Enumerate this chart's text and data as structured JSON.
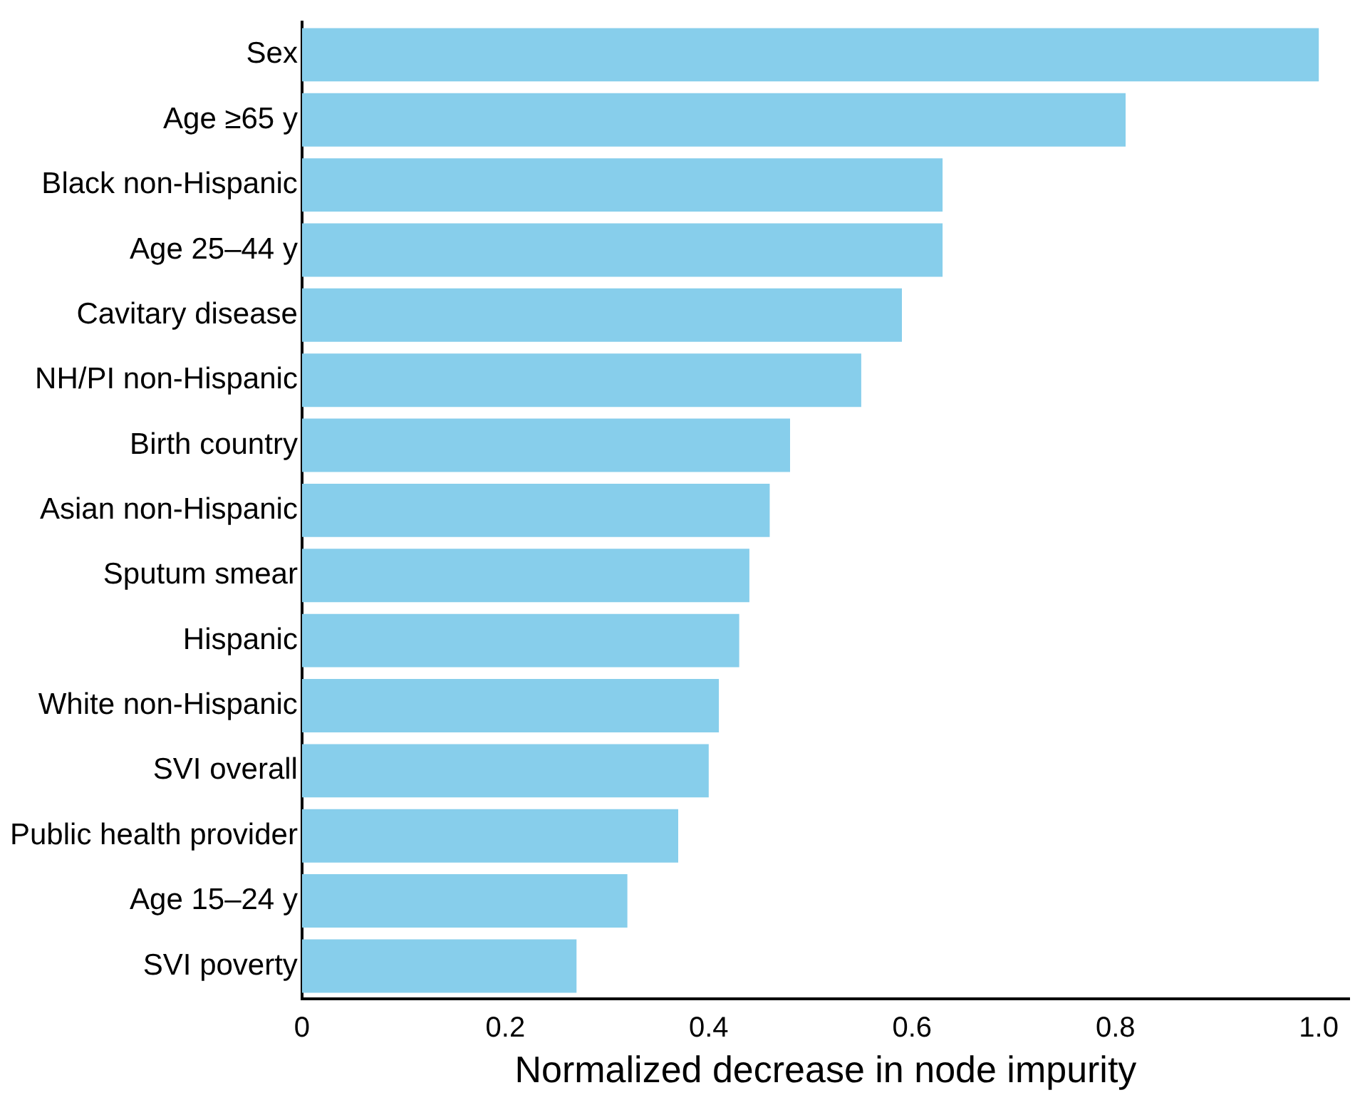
{
  "chart_data": {
    "type": "bar",
    "orientation": "horizontal",
    "xlabel": "Normalized decrease in node impurity",
    "categories": [
      "Sex",
      "Age ≥65 y",
      "Black non-Hispanic",
      "Age 25–44 y",
      "Cavitary disease",
      "NH/PI non-Hispanic",
      "Birth country",
      "Asian non-Hispanic",
      "Sputum smear",
      "Hispanic",
      "White non-Hispanic",
      "SVI overall",
      "Public health provider",
      "Age 15–24 y",
      "SVI poverty"
    ],
    "values": [
      1.0,
      0.81,
      0.63,
      0.63,
      0.59,
      0.55,
      0.48,
      0.46,
      0.44,
      0.43,
      0.41,
      0.4,
      0.37,
      0.32,
      0.27
    ],
    "color": "#87ceeb",
    "xlim": [
      0,
      1.03
    ],
    "xticks": [
      0,
      0.2,
      0.4,
      0.6,
      0.8,
      {
        "value": 1,
        "label": "1.0"
      }
    ],
    "grid": false,
    "legend": false
  }
}
